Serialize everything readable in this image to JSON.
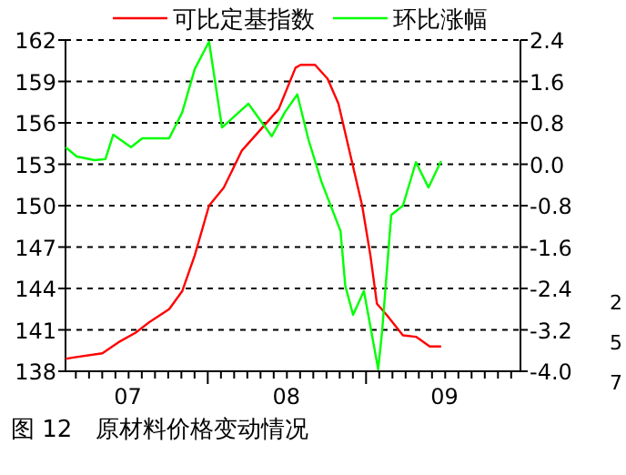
{
  "chart_data": {
    "type": "line",
    "title": "图 12　原材料价格变动情况",
    "legend": "top",
    "grid": "y",
    "marker": "none",
    "line_style": "solid",
    "xlim": [
      "2007-02-07",
      "2009-12-23"
    ],
    "xticks": [
      {
        "value": "2007-07",
        "label": "07"
      },
      {
        "value": "2008-07",
        "label": "08"
      },
      {
        "value": "2009-07",
        "label": "09"
      }
    ],
    "ylim": [
      138,
      162
    ],
    "yticks": [
      138,
      141,
      144,
      147,
      150,
      153,
      156,
      159,
      162
    ],
    "y2lim": [
      -4.0,
      2.4
    ],
    "y2ticks": [
      {
        "value": -4.0,
        "label": "-4.0"
      },
      {
        "value": -3.2,
        "label": "-3.2"
      },
      {
        "value": -2.4,
        "label": "-2.4"
      },
      {
        "value": -1.6,
        "label": "-1.6"
      },
      {
        "value": -0.8,
        "label": "-0.8"
      },
      {
        "value": 0,
        "label": "0.0"
      },
      {
        "value": 0.8,
        "label": "0.8"
      },
      {
        "value": 1.6,
        "label": "1.6"
      },
      {
        "value": 2.4,
        "label": "2.4"
      }
    ],
    "annotations": [
      "2",
      "5",
      "7"
    ],
    "series": [
      {
        "name": "可比定基指数",
        "color": "#ff0000",
        "x": [
          "2007-02-07",
          "2007-02-25",
          "2007-05-03",
          "2007-06-09",
          "2007-07-19",
          "2007-08-21",
          "2007-10-04",
          "2007-11-03",
          "2007-12-02",
          "2008-01-04",
          "2008-02-07",
          "2008-03-20",
          "2008-04-29",
          "2008-06-13",
          "2008-07-22",
          "2008-08-03",
          "2008-09-05",
          "2008-10-04",
          "2008-10-29",
          "2008-12-23",
          "2009-01-11",
          "2009-01-26",
          "2009-02-17",
          "2009-03-27",
          "2009-04-26",
          "2009-05-28",
          "2009-06-23"
        ],
        "values": [
          138.9,
          139.0,
          139.3,
          140.1,
          140.8,
          141.6,
          142.5,
          143.8,
          146.4,
          150.0,
          151.3,
          154.0,
          155.4,
          157.0,
          160.0,
          160.2,
          160.2,
          159.2,
          157.4,
          150.0,
          146.4,
          142.9,
          142.1,
          140.6,
          140.5,
          139.8,
          139.8
        ]
      },
      {
        "name": "环比涨幅",
        "color": "#00ff00",
        "axis": "y2",
        "x": [
          "2007-02-07",
          "2007-03-05",
          "2007-04-15",
          "2007-05-10",
          "2007-05-28",
          "2007-07-08",
          "2007-08-03",
          "2007-10-04",
          "2007-11-03",
          "2007-12-02",
          "2008-01-04",
          "2008-02-03",
          "2008-04-04",
          "2008-05-28",
          "2008-06-27",
          "2008-07-26",
          "2008-08-21",
          "2008-09-20",
          "2008-11-03",
          "2008-11-14",
          "2008-12-02",
          "2008-12-27",
          "2009-01-29",
          "2009-02-07",
          "2009-02-28",
          "2009-03-27",
          "2009-04-26",
          "2009-05-25",
          "2009-06-23"
        ],
        "values": [
          0.33,
          0.15,
          0.08,
          0.1,
          0.57,
          0.33,
          0.5,
          0.5,
          1.0,
          1.84,
          2.37,
          0.71,
          1.17,
          0.54,
          1.0,
          1.35,
          0.47,
          -0.34,
          -1.29,
          -2.35,
          -2.91,
          -2.45,
          -3.96,
          -3.23,
          -0.98,
          -0.8,
          0.04,
          -0.45,
          0.06
        ]
      }
    ]
  }
}
